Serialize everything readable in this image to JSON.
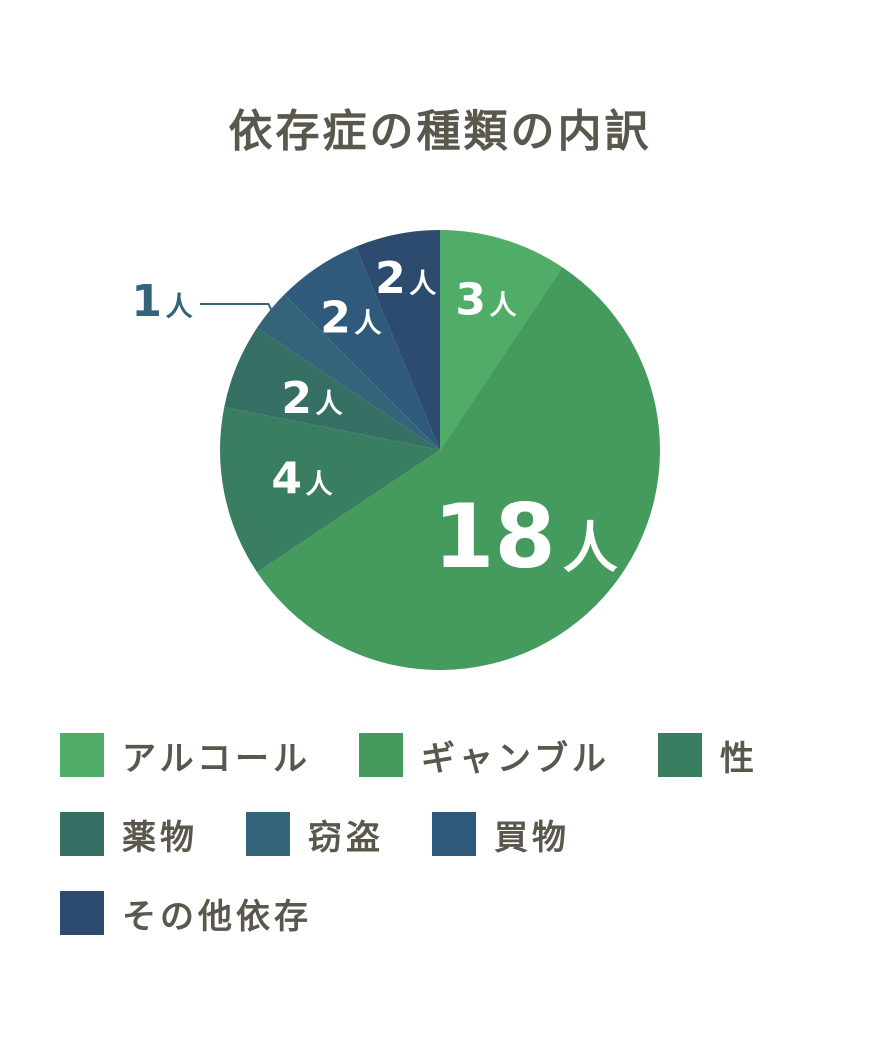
{
  "chart_data": {
    "type": "pie",
    "title": "依存症の種類の内訳",
    "unit": "人",
    "slices": [
      {
        "label": "アルコール",
        "value": 3,
        "color": "#4fad68"
      },
      {
        "label": "ギャンブル",
        "value": 18,
        "color": "#449b5d"
      },
      {
        "label": "性",
        "value": 4,
        "color": "#3a7e61"
      },
      {
        "label": "薬物",
        "value": 2,
        "color": "#366f64"
      },
      {
        "label": "窃盗",
        "value": 1,
        "color": "#34647a"
      },
      {
        "label": "買物",
        "value": 2,
        "color": "#2f5a7c"
      },
      {
        "label": "その他依存",
        "value": 2,
        "color": "#2c4b6e"
      }
    ],
    "legend_position": "bottom"
  }
}
